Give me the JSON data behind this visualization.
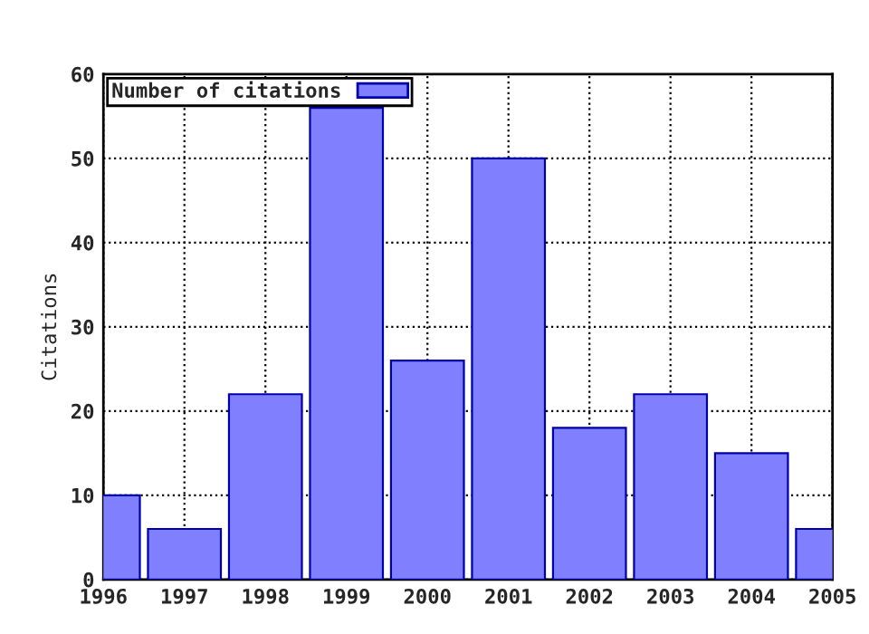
{
  "chart_data": {
    "type": "bar",
    "ylabel": "Citations",
    "x": [
      1996,
      1997,
      1998,
      1999,
      2000,
      2001,
      2002,
      2003,
      2004,
      2005
    ],
    "series": [
      {
        "name": "Number of citations",
        "color": "#8080ff",
        "values": [
          10,
          6,
          22,
          56,
          26,
          50,
          18,
          22,
          15,
          6
        ]
      }
    ],
    "xlim": [
      1996,
      2005
    ],
    "xticks": [
      1996,
      1997,
      1998,
      1999,
      2000,
      2001,
      2002,
      2003,
      2004,
      2005
    ],
    "ylim": [
      0,
      60
    ],
    "yticks": [
      0,
      10,
      20,
      30,
      40,
      50,
      60
    ],
    "grid": true,
    "legend": "top left"
  }
}
